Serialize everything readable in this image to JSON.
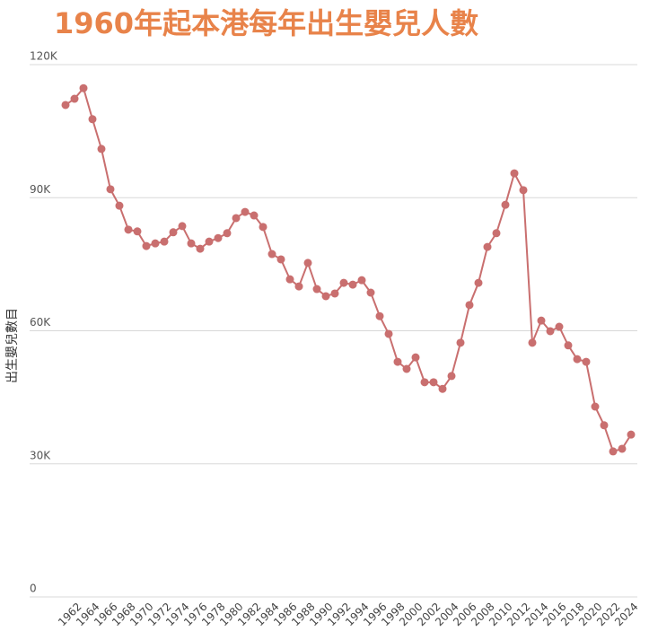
{
  "chart_data": {
    "type": "line",
    "title": "1960年起本港每年出生嬰兒人數",
    "ylabel": "出生嬰兒數目",
    "x": [
      1961,
      1962,
      1963,
      1964,
      1965,
      1966,
      1967,
      1968,
      1969,
      1970,
      1971,
      1972,
      1973,
      1974,
      1975,
      1976,
      1977,
      1978,
      1979,
      1980,
      1981,
      1982,
      1983,
      1984,
      1985,
      1986,
      1987,
      1988,
      1989,
      1990,
      1991,
      1992,
      1993,
      1994,
      1995,
      1996,
      1997,
      1998,
      1999,
      2000,
      2001,
      2002,
      2003,
      2004,
      2005,
      2006,
      2007,
      2008,
      2009,
      2010,
      2011,
      2012,
      2013,
      2014,
      2015,
      2016,
      2017,
      2018,
      2019,
      2020,
      2021,
      2022,
      2023,
      2024
    ],
    "series": [
      {
        "name": "出生嬰兒數目",
        "color": "#c96f6f",
        "values": [
          110900,
          112300,
          114700,
          107700,
          101000,
          91900,
          88200,
          82800,
          82400,
          79100,
          79700,
          80100,
          82200,
          83600,
          79700,
          78500,
          80100,
          80900,
          82000,
          85400,
          86800,
          86000,
          83400,
          77300,
          76100,
          71600,
          70000,
          75300,
          69400,
          67800,
          68400,
          70800,
          70400,
          71400,
          68600,
          63300,
          59300,
          53000,
          51400,
          54000,
          48400,
          48400,
          46900,
          49800,
          57300,
          65800,
          70800,
          78900,
          82000,
          88400,
          95500,
          91700,
          57300,
          62300,
          59900,
          60900,
          56700,
          53600,
          53000,
          42900,
          38700,
          32800,
          33400,
          36600
        ]
      }
    ],
    "xlim": [
      1957,
      2025
    ],
    "xticks": [
      1962,
      1964,
      1966,
      1968,
      1970,
      1972,
      1974,
      1976,
      1978,
      1980,
      1982,
      1984,
      1986,
      1988,
      1990,
      1992,
      1994,
      1996,
      1998,
      2000,
      2002,
      2004,
      2006,
      2008,
      2010,
      2012,
      2014,
      2016,
      2018,
      2020,
      2022,
      2024
    ],
    "ylim": [
      0,
      120000
    ],
    "yticks": [
      0,
      {
        "value": 30000,
        "label": "30K"
      },
      {
        "value": 60000,
        "label": "60K"
      },
      {
        "value": 90000,
        "label": "90K"
      },
      {
        "value": 120000,
        "label": "120K"
      }
    ],
    "grid": true
  }
}
